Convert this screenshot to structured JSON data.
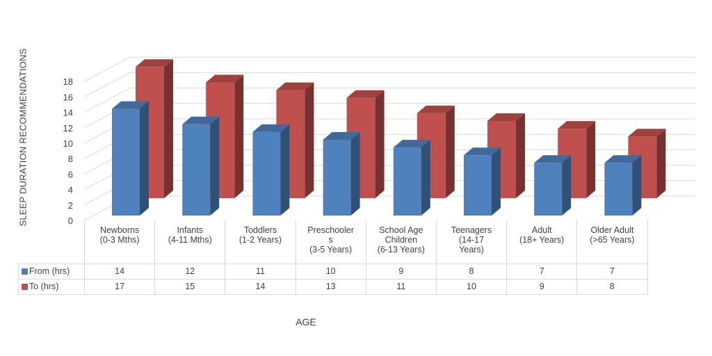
{
  "chart_data": {
    "type": "bar",
    "title": "",
    "ylabel": "SLEEP DURATION RECOMMENDATIONS",
    "xlabel": "AGE",
    "ylim": [
      0,
      18
    ],
    "ytick_labels": [
      "0",
      "2",
      "4",
      "6",
      "8",
      "10",
      "12",
      "14",
      "16",
      "18"
    ],
    "grid": true,
    "legend": "data-table",
    "categories": [
      "Newborns (0-3 Mths)",
      "Infants (4-11 Mths)",
      "Toddlers (1-2 Years)",
      "Preschoolers (3-5 Years)",
      "School Age Children (6-13 Years)",
      "Teenagers (14-17 Years)",
      "Adult (18+ Years)",
      "Older Adult (>65 Years)"
    ],
    "category_lines": [
      [
        "Newborns",
        "(0-3 Mths)"
      ],
      [
        "Infants",
        "(4-11 Mths)"
      ],
      [
        "Toddlers",
        "(1-2 Years)"
      ],
      [
        "Preschooler",
        "s",
        "(3-5 Years)"
      ],
      [
        "School Age",
        "Children",
        "(6-13 Years)"
      ],
      [
        "Teenagers",
        "(14-17",
        "Years)"
      ],
      [
        "Adult",
        "(18+ Years)"
      ],
      [
        "Older Adult",
        "(>65 Years)"
      ]
    ],
    "series": [
      {
        "name": "From (hrs)",
        "color": "#4f81bd",
        "values": [
          14,
          12,
          11,
          10,
          9,
          8,
          7,
          7
        ]
      },
      {
        "name": "To (hrs)",
        "color": "#c0504d",
        "values": [
          17,
          15,
          14,
          13,
          11,
          10,
          9,
          8
        ]
      }
    ]
  }
}
